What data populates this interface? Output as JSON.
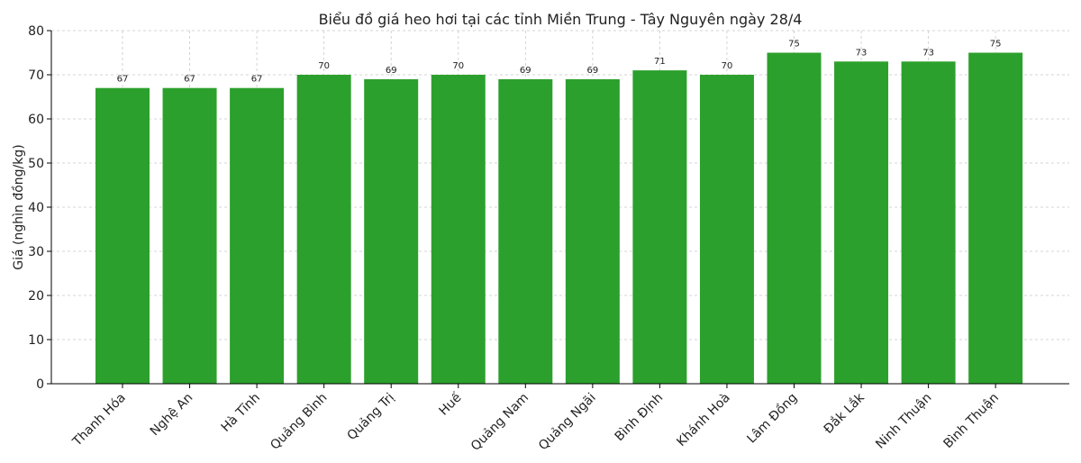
{
  "chart_data": {
    "type": "bar",
    "title": "Biểu đồ giá heo hơi tại các tỉnh Miền Trung - Tây Nguyên ngày 28/4",
    "y_label": "Giá (nghìn đồng/kg)",
    "categories": [
      "Thanh Hóa",
      "Nghệ An",
      "Hà Tĩnh",
      "Quảng Bình",
      "Quảng Trị",
      "Huế",
      "Quảng Nam",
      "Quảng Ngãi",
      "Bình Định",
      "Khánh Hoà",
      "Lâm Đồng",
      "Đắk Lắk",
      "Ninh Thuận",
      "Bình Thuận"
    ],
    "values": [
      67,
      67,
      67,
      70,
      69,
      70,
      69,
      69,
      71,
      70,
      75,
      73,
      73,
      75
    ],
    "color": "#2ca02c",
    "ylim": [
      0,
      80
    ],
    "yticks": [
      0,
      10,
      20,
      30,
      40,
      50,
      60,
      70,
      80
    ],
    "grid": true
  }
}
